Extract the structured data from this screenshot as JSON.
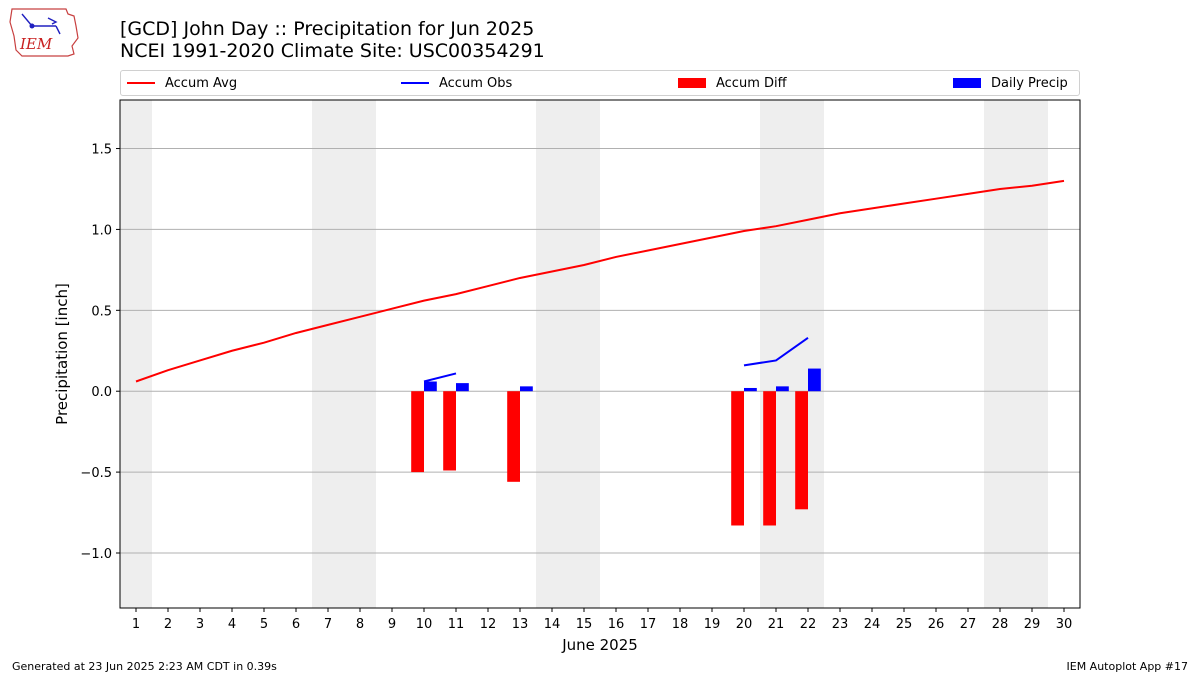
{
  "header": {
    "logo_text": "IEM",
    "title_line1": "[GCD] John Day :: Precipitation for Jun 2025",
    "title_line2": "NCEI 1991-2020 Climate Site: USC00354291"
  },
  "legend": {
    "accum_avg": "Accum Avg",
    "accum_obs": "Accum Obs",
    "accum_diff": "Accum Diff",
    "daily_precip": "Daily Precip"
  },
  "footer": {
    "generated": "Generated at 23 Jun 2025 2:23 AM CDT in 0.39s",
    "app": "IEM Autoplot App #17"
  },
  "colors": {
    "accum_avg": "#ff0000",
    "accum_obs": "#0000ff",
    "accum_diff": "#ff0000",
    "daily_precip": "#0000ff",
    "weekend_shade": "#eeeeee",
    "grid": "#b0b0b0"
  },
  "chart_data": {
    "type": "bar",
    "xlabel": "June 2025",
    "ylabel": "Precipitation [inch]",
    "xlim": [
      0.5,
      30.5
    ],
    "ylim": [
      -1.34,
      1.8
    ],
    "x_ticks": [
      1,
      2,
      3,
      4,
      5,
      6,
      7,
      8,
      9,
      10,
      11,
      12,
      13,
      14,
      15,
      16,
      17,
      18,
      19,
      20,
      21,
      22,
      23,
      24,
      25,
      26,
      27,
      28,
      29,
      30
    ],
    "y_ticks": [
      -1.0,
      -0.5,
      0.0,
      0.5,
      1.0,
      1.5
    ],
    "y_tick_labels": [
      "−1.0",
      "−0.5",
      "0.0",
      "0.5",
      "1.0",
      "1.5"
    ],
    "grid": "horizontal",
    "legend_position": "top",
    "weekend_shading": [
      [
        0.5,
        1.5
      ],
      [
        6.5,
        8.5
      ],
      [
        13.5,
        15.5
      ],
      [
        20.5,
        22.5
      ],
      [
        27.5,
        29.5
      ]
    ],
    "accum_avg": {
      "days": [
        1,
        2,
        3,
        4,
        5,
        6,
        7,
        8,
        9,
        10,
        11,
        12,
        13,
        14,
        15,
        16,
        17,
        18,
        19,
        20,
        21,
        22,
        23,
        24,
        25,
        26,
        27,
        28,
        29,
        30
      ],
      "values": [
        0.06,
        0.13,
        0.19,
        0.25,
        0.3,
        0.36,
        0.41,
        0.46,
        0.51,
        0.56,
        0.6,
        0.65,
        0.7,
        0.74,
        0.78,
        0.83,
        0.87,
        0.91,
        0.95,
        0.99,
        1.02,
        1.06,
        1.1,
        1.13,
        1.16,
        1.19,
        1.22,
        1.25,
        1.27,
        1.3
      ]
    },
    "accum_obs_segments": [
      {
        "days": [
          10,
          11
        ],
        "values": [
          0.06,
          0.11
        ]
      },
      {
        "days": [
          20,
          21,
          22
        ],
        "values": [
          0.16,
          0.19,
          0.33
        ]
      }
    ],
    "accum_diff": {
      "days": [
        10,
        11,
        13,
        20,
        21,
        22
      ],
      "values": [
        -0.5,
        -0.49,
        -0.56,
        -0.83,
        -0.83,
        -0.73
      ]
    },
    "daily_precip": {
      "days": [
        10,
        11,
        13,
        20,
        21,
        22
      ],
      "values": [
        0.06,
        0.05,
        0.03,
        0.02,
        0.03,
        0.14
      ]
    }
  }
}
